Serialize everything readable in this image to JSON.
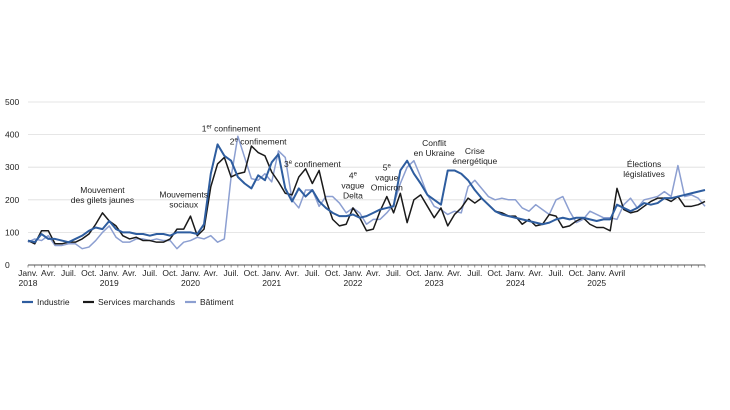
{
  "chart_data": {
    "type": "line",
    "ylim": [
      0,
      500
    ],
    "yticks": [
      0,
      100,
      200,
      300,
      400,
      500
    ],
    "grid": true,
    "legend_position": "bottom-left",
    "x_tick_labels": [
      {
        "i": 0,
        "lines": [
          "Janv.",
          "2018"
        ]
      },
      {
        "i": 3,
        "lines": [
          "Avr."
        ]
      },
      {
        "i": 6,
        "lines": [
          "Juil."
        ]
      },
      {
        "i": 9,
        "lines": [
          "Oct."
        ]
      },
      {
        "i": 12,
        "lines": [
          "Janv.",
          "2019"
        ]
      },
      {
        "i": 15,
        "lines": [
          "Avr."
        ]
      },
      {
        "i": 18,
        "lines": [
          "Juil."
        ]
      },
      {
        "i": 21,
        "lines": [
          "Oct."
        ]
      },
      {
        "i": 24,
        "lines": [
          "Janv.",
          "2020"
        ]
      },
      {
        "i": 27,
        "lines": [
          "Avr."
        ]
      },
      {
        "i": 30,
        "lines": [
          "Juil."
        ]
      },
      {
        "i": 33,
        "lines": [
          "Oct."
        ]
      },
      {
        "i": 36,
        "lines": [
          "Janv.",
          "2021"
        ]
      },
      {
        "i": 39,
        "lines": [
          "Avr."
        ]
      },
      {
        "i": 42,
        "lines": [
          "Juil."
        ]
      },
      {
        "i": 45,
        "lines": [
          "Oct."
        ]
      },
      {
        "i": 48,
        "lines": [
          "Janv.",
          "2022"
        ]
      },
      {
        "i": 51,
        "lines": [
          "Avr."
        ]
      },
      {
        "i": 54,
        "lines": [
          "Juil."
        ]
      },
      {
        "i": 57,
        "lines": [
          "Oct."
        ]
      },
      {
        "i": 60,
        "lines": [
          "Janv.",
          "2023"
        ]
      },
      {
        "i": 63,
        "lines": [
          "Avr."
        ]
      },
      {
        "i": 66,
        "lines": [
          "Juil."
        ]
      },
      {
        "i": 69,
        "lines": [
          "Oct."
        ]
      },
      {
        "i": 72,
        "lines": [
          "Janv.",
          "2024"
        ]
      },
      {
        "i": 75,
        "lines": [
          "Avr."
        ]
      },
      {
        "i": 78,
        "lines": [
          "Juil."
        ]
      },
      {
        "i": 81,
        "lines": [
          "Oct."
        ]
      },
      {
        "i": 84,
        "lines": [
          "Janv.",
          "2025"
        ]
      },
      {
        "i": 87,
        "lines": [
          "Avril"
        ]
      }
    ],
    "series": [
      {
        "name": "Industrie",
        "color": "#2e5d9f",
        "values": [
          75,
          70,
          95,
          80,
          80,
          75,
          70,
          80,
          90,
          105,
          115,
          110,
          135,
          110,
          100,
          100,
          95,
          95,
          90,
          95,
          95,
          90,
          100,
          100,
          100,
          95,
          125,
          280,
          370,
          335,
          320,
          270,
          250,
          235,
          275,
          260,
          315,
          340,
          235,
          195,
          235,
          210,
          230,
          195,
          175,
          160,
          150,
          150,
          155,
          145,
          150,
          160,
          170,
          175,
          180,
          290,
          320,
          280,
          250,
          215,
          200,
          185,
          290,
          290,
          280,
          260,
          230,
          205,
          185,
          165,
          155,
          150,
          145,
          140,
          135,
          130,
          125,
          130,
          140,
          145,
          140,
          145,
          145,
          140,
          135,
          140,
          140,
          185,
          175,
          165,
          175,
          190,
          185,
          190,
          205,
          205,
          210,
          215,
          220,
          225,
          230
        ]
      },
      {
        "name": "Services marchands",
        "color": "#1a1a1a",
        "values": [
          75,
          65,
          105,
          105,
          65,
          65,
          70,
          70,
          80,
          95,
          125,
          160,
          135,
          120,
          90,
          80,
          85,
          75,
          75,
          70,
          70,
          80,
          110,
          110,
          150,
          90,
          110,
          240,
          310,
          330,
          270,
          280,
          285,
          365,
          345,
          335,
          285,
          255,
          220,
          215,
          270,
          295,
          250,
          290,
          200,
          140,
          120,
          125,
          175,
          145,
          105,
          110,
          165,
          210,
          160,
          220,
          130,
          200,
          215,
          180,
          145,
          175,
          120,
          155,
          175,
          205,
          190,
          205,
          185,
          165,
          160,
          150,
          150,
          125,
          140,
          120,
          125,
          155,
          150,
          115,
          120,
          135,
          145,
          125,
          115,
          115,
          105,
          235,
          170,
          160,
          165,
          180,
          195,
          205,
          205,
          195,
          210,
          180,
          180,
          185,
          195
        ]
      },
      {
        "name": "Bâtiment",
        "color": "#8c9fd1",
        "values": [
          70,
          80,
          75,
          90,
          60,
          60,
          65,
          65,
          50,
          55,
          75,
          100,
          120,
          85,
          70,
          70,
          80,
          80,
          75,
          80,
          75,
          75,
          50,
          70,
          75,
          85,
          80,
          90,
          70,
          80,
          270,
          395,
          330,
          265,
          260,
          280,
          255,
          350,
          330,
          200,
          175,
          230,
          230,
          180,
          210,
          210,
          190,
          160,
          175,
          160,
          125,
          140,
          140,
          160,
          185,
          250,
          300,
          320,
          270,
          215,
          180,
          170,
          155,
          165,
          160,
          240,
          260,
          235,
          210,
          200,
          205,
          200,
          200,
          175,
          165,
          185,
          170,
          155,
          200,
          210,
          165,
          130,
          140,
          165,
          155,
          145,
          145,
          140,
          185,
          205,
          175,
          200,
          205,
          210,
          225,
          210,
          305,
          210,
          215,
          205,
          180
        ]
      }
    ],
    "annotations": [
      {
        "i": 11,
        "v": 190,
        "lines": [
          "Mouvement",
          "des gilets jaunes"
        ]
      },
      {
        "i": 23,
        "v": 177,
        "lines": [
          "Mouvements",
          "sociaux"
        ]
      },
      {
        "i": 30,
        "v": 410,
        "lines": [
          "1",
          "er",
          " confinement"
        ],
        "sup": true
      },
      {
        "i": 34,
        "v": 370,
        "lines": [
          "2",
          "e",
          " confinement"
        ],
        "sup": true
      },
      {
        "i": 42,
        "v": 300,
        "lines": [
          "3",
          "e",
          " confinement"
        ],
        "sup": true
      },
      {
        "i": 48,
        "v": 265,
        "lines": [
          "4",
          "e",
          "",
          "vague",
          "Delta"
        ],
        "stack": true
      },
      {
        "i": 53,
        "v": 290,
        "lines": [
          "5",
          "e",
          "",
          "vague",
          "Omicron"
        ],
        "stack": true
      },
      {
        "i": 60,
        "v": 335,
        "lines": [
          "Conflit",
          "en Ukraine"
        ]
      },
      {
        "i": 66,
        "v": 310,
        "lines": [
          "Crise",
          "énergétique"
        ]
      },
      {
        "i": 91,
        "v": 270,
        "lines": [
          "Élections",
          "législatives"
        ]
      }
    ]
  }
}
